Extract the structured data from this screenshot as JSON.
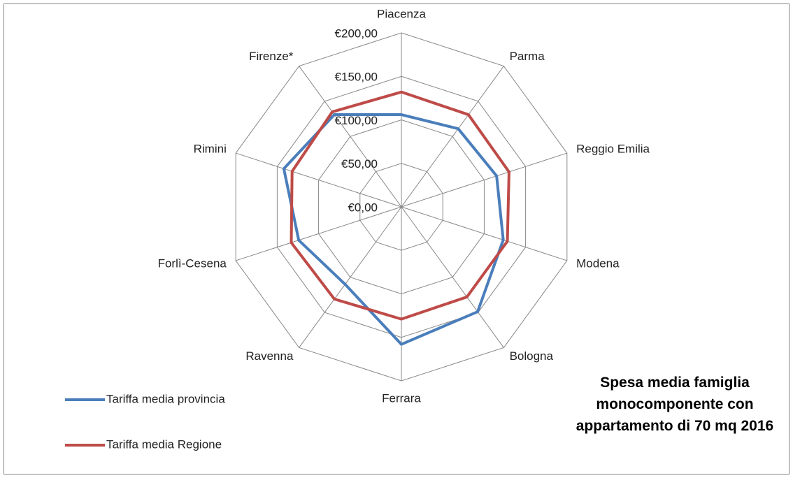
{
  "chart_data": {
    "type": "radar",
    "title": "Spesa media famiglia monocomponente con appartamento di 70 mq 2016",
    "categories": [
      "Piacenza",
      "Parma",
      "Reggio Emilia",
      "Modena",
      "Bologna",
      "Ferrara",
      "Ravenna",
      "Forlì-Cesena",
      "Rimini",
      "Firenze*"
    ],
    "series": [
      {
        "name": "Tariffa media provincia",
        "color": "#4a7ebb",
        "values": [
          106,
          111,
          115,
          123,
          149,
          158,
          110,
          124,
          142,
          131
        ]
      },
      {
        "name": "Tariffa media Regione",
        "color": "#be4b48",
        "values": [
          132,
          131,
          130,
          128,
          128,
          129,
          131,
          133,
          132,
          135
        ]
      }
    ],
    "rlim": [
      0,
      200
    ],
    "rticks": [
      {
        "value": 0,
        "label": "€0,00"
      },
      {
        "value": 50,
        "label": "€50,00"
      },
      {
        "value": 100,
        "label": "€100,00"
      },
      {
        "value": 150,
        "label": "€150,00"
      },
      {
        "value": 200,
        "label": "€200,00"
      }
    ],
    "grid": true
  }
}
